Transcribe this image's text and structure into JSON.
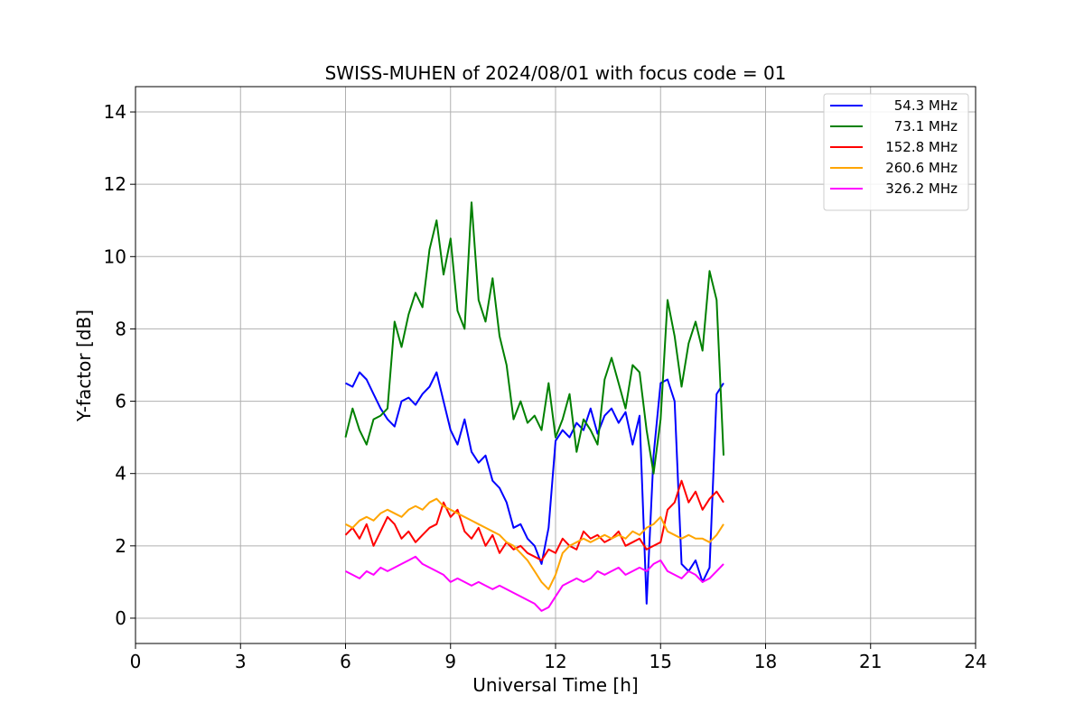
{
  "chart_data": {
    "type": "line",
    "title": "SWISS-MUHEN of 2024/08/01 with focus code = 01",
    "xlabel": "Universal Time [h]",
    "ylabel": "Y-factor [dB]",
    "xlim": [
      0,
      24
    ],
    "ylim": [
      -0.7,
      14.7
    ],
    "xticks": [
      0,
      3,
      6,
      9,
      12,
      15,
      18,
      21,
      24
    ],
    "yticks": [
      0,
      2,
      4,
      6,
      8,
      10,
      12,
      14
    ],
    "grid": true,
    "legend_position": "top-right",
    "series": [
      {
        "name": "54.3 MHz",
        "color": "#0000ff",
        "x": [
          6.0,
          6.2,
          6.4,
          6.6,
          6.8,
          7.0,
          7.2,
          7.4,
          7.6,
          7.8,
          8.0,
          8.2,
          8.4,
          8.6,
          8.8,
          9.0,
          9.2,
          9.4,
          9.6,
          9.8,
          10.0,
          10.2,
          10.4,
          10.6,
          10.8,
          11.0,
          11.2,
          11.4,
          11.6,
          11.8,
          12.0,
          12.2,
          12.4,
          12.6,
          12.8,
          13.0,
          13.2,
          13.4,
          13.6,
          13.8,
          14.0,
          14.2,
          14.4,
          14.6,
          14.8,
          15.0,
          15.2,
          15.4,
          15.6,
          15.8,
          16.0,
          16.2,
          16.4,
          16.6,
          16.8
        ],
        "y": [
          6.5,
          6.4,
          6.8,
          6.6,
          6.2,
          5.8,
          5.5,
          5.3,
          6.0,
          6.1,
          5.9,
          6.2,
          6.4,
          6.8,
          6.0,
          5.2,
          4.8,
          5.5,
          4.6,
          4.3,
          4.5,
          3.8,
          3.6,
          3.2,
          2.5,
          2.6,
          2.2,
          2.0,
          1.5,
          2.5,
          4.9,
          5.2,
          5.0,
          5.4,
          5.2,
          5.8,
          5.1,
          5.6,
          5.8,
          5.4,
          5.7,
          4.8,
          5.6,
          0.4,
          4.5,
          6.5,
          6.6,
          6.0,
          1.5,
          1.3,
          1.6,
          1.0,
          1.4,
          6.2,
          6.5
        ]
      },
      {
        "name": "73.1 MHz",
        "color": "#008000",
        "x": [
          6.0,
          6.2,
          6.4,
          6.6,
          6.8,
          7.0,
          7.2,
          7.4,
          7.6,
          7.8,
          8.0,
          8.2,
          8.4,
          8.6,
          8.8,
          9.0,
          9.2,
          9.4,
          9.6,
          9.8,
          10.0,
          10.2,
          10.4,
          10.6,
          10.8,
          11.0,
          11.2,
          11.4,
          11.6,
          11.8,
          12.0,
          12.2,
          12.4,
          12.6,
          12.8,
          13.0,
          13.2,
          13.4,
          13.6,
          13.8,
          14.0,
          14.2,
          14.4,
          14.6,
          14.8,
          15.0,
          15.2,
          15.4,
          15.6,
          15.8,
          16.0,
          16.2,
          16.4,
          16.6,
          16.8
        ],
        "y": [
          5.0,
          5.8,
          5.2,
          4.8,
          5.5,
          5.6,
          5.8,
          8.2,
          7.5,
          8.4,
          9.0,
          8.6,
          10.2,
          11.0,
          9.5,
          10.5,
          8.5,
          8.0,
          11.5,
          8.8,
          8.2,
          9.4,
          7.8,
          7.0,
          5.5,
          6.0,
          5.4,
          5.6,
          5.2,
          6.5,
          5.0,
          5.5,
          6.2,
          4.6,
          5.5,
          5.2,
          4.8,
          6.6,
          7.2,
          6.5,
          5.8,
          7.0,
          6.8,
          5.2,
          4.0,
          5.5,
          8.8,
          7.8,
          6.4,
          7.6,
          8.2,
          7.4,
          9.6,
          8.8,
          4.5
        ]
      },
      {
        "name": "152.8 MHz",
        "color": "#ff0000",
        "x": [
          6.0,
          6.2,
          6.4,
          6.6,
          6.8,
          7.0,
          7.2,
          7.4,
          7.6,
          7.8,
          8.0,
          8.2,
          8.4,
          8.6,
          8.8,
          9.0,
          9.2,
          9.4,
          9.6,
          9.8,
          10.0,
          10.2,
          10.4,
          10.6,
          10.8,
          11.0,
          11.2,
          11.4,
          11.6,
          11.8,
          12.0,
          12.2,
          12.4,
          12.6,
          12.8,
          13.0,
          13.2,
          13.4,
          13.6,
          13.8,
          14.0,
          14.2,
          14.4,
          14.6,
          14.8,
          15.0,
          15.2,
          15.4,
          15.6,
          15.8,
          16.0,
          16.2,
          16.4,
          16.6,
          16.8
        ],
        "y": [
          2.3,
          2.5,
          2.2,
          2.6,
          2.0,
          2.4,
          2.8,
          2.6,
          2.2,
          2.4,
          2.1,
          2.3,
          2.5,
          2.6,
          3.2,
          2.8,
          3.0,
          2.4,
          2.2,
          2.5,
          2.0,
          2.3,
          1.8,
          2.1,
          1.9,
          2.0,
          1.8,
          1.7,
          1.6,
          1.9,
          1.8,
          2.2,
          2.0,
          1.9,
          2.4,
          2.2,
          2.3,
          2.1,
          2.2,
          2.4,
          2.0,
          2.1,
          2.2,
          1.9,
          2.0,
          2.1,
          3.0,
          3.2,
          3.8,
          3.2,
          3.5,
          3.0,
          3.3,
          3.5,
          3.2
        ]
      },
      {
        "name": "260.6 MHz",
        "color": "#ffa500",
        "x": [
          6.0,
          6.2,
          6.4,
          6.6,
          6.8,
          7.0,
          7.2,
          7.4,
          7.6,
          7.8,
          8.0,
          8.2,
          8.4,
          8.6,
          8.8,
          9.0,
          9.2,
          9.4,
          9.6,
          9.8,
          10.0,
          10.2,
          10.4,
          10.6,
          10.8,
          11.0,
          11.2,
          11.4,
          11.6,
          11.8,
          12.0,
          12.2,
          12.4,
          12.6,
          12.8,
          13.0,
          13.2,
          13.4,
          13.6,
          13.8,
          14.0,
          14.2,
          14.4,
          14.6,
          14.8,
          15.0,
          15.2,
          15.4,
          15.6,
          15.8,
          16.0,
          16.2,
          16.4,
          16.6,
          16.8
        ],
        "y": [
          2.6,
          2.5,
          2.7,
          2.8,
          2.7,
          2.9,
          3.0,
          2.9,
          2.8,
          3.0,
          3.1,
          3.0,
          3.2,
          3.3,
          3.1,
          3.0,
          2.9,
          2.8,
          2.7,
          2.6,
          2.5,
          2.4,
          2.3,
          2.1,
          2.0,
          1.8,
          1.6,
          1.3,
          1.0,
          0.8,
          1.2,
          1.8,
          2.0,
          2.1,
          2.2,
          2.1,
          2.2,
          2.3,
          2.2,
          2.3,
          2.2,
          2.4,
          2.3,
          2.5,
          2.6,
          2.8,
          2.4,
          2.3,
          2.2,
          2.3,
          2.2,
          2.2,
          2.1,
          2.3,
          2.6
        ]
      },
      {
        "name": "326.2 MHz",
        "color": "#ff00ff",
        "x": [
          6.0,
          6.2,
          6.4,
          6.6,
          6.8,
          7.0,
          7.2,
          7.4,
          7.6,
          7.8,
          8.0,
          8.2,
          8.4,
          8.6,
          8.8,
          9.0,
          9.2,
          9.4,
          9.6,
          9.8,
          10.0,
          10.2,
          10.4,
          10.6,
          10.8,
          11.0,
          11.2,
          11.4,
          11.6,
          11.8,
          12.0,
          12.2,
          12.4,
          12.6,
          12.8,
          13.0,
          13.2,
          13.4,
          13.6,
          13.8,
          14.0,
          14.2,
          14.4,
          14.6,
          14.8,
          15.0,
          15.2,
          15.4,
          15.6,
          15.8,
          16.0,
          16.2,
          16.4,
          16.6,
          16.8
        ],
        "y": [
          1.3,
          1.2,
          1.1,
          1.3,
          1.2,
          1.4,
          1.3,
          1.4,
          1.5,
          1.6,
          1.7,
          1.5,
          1.4,
          1.3,
          1.2,
          1.0,
          1.1,
          1.0,
          0.9,
          1.0,
          0.9,
          0.8,
          0.9,
          0.8,
          0.7,
          0.6,
          0.5,
          0.4,
          0.2,
          0.3,
          0.6,
          0.9,
          1.0,
          1.1,
          1.0,
          1.1,
          1.3,
          1.2,
          1.3,
          1.4,
          1.2,
          1.3,
          1.4,
          1.3,
          1.5,
          1.6,
          1.3,
          1.2,
          1.1,
          1.3,
          1.2,
          1.0,
          1.1,
          1.3,
          1.5
        ]
      }
    ]
  }
}
